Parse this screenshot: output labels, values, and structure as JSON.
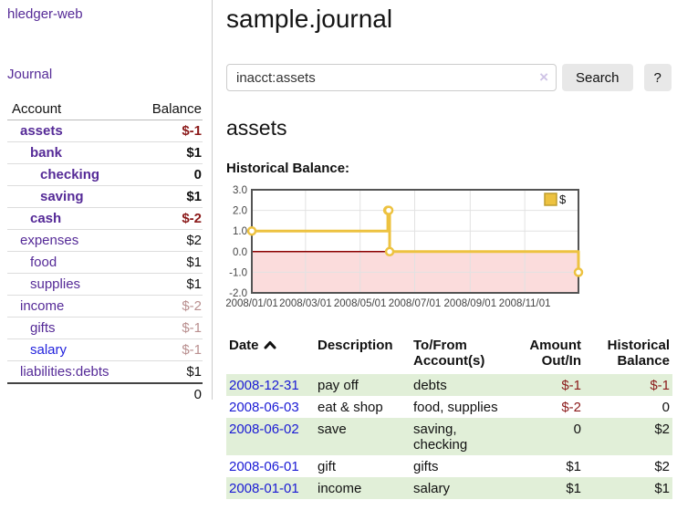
{
  "colors": {
    "accent_purple": "#552a97",
    "link_blue": "#2222dd",
    "date_link_blue": "#1a1ad4",
    "negative_red": "#8b1a1a",
    "muted_negative_red": "#b98f8f",
    "stripe_green": "#e1efd8",
    "series_yellow": "#EDC240",
    "zero_line_red": "#8b0000",
    "negative_region_pink": "#fbdcdc",
    "chart_border_gray": "#545454"
  },
  "sidebar": {
    "brand": "hledger-web",
    "journal_label": "Journal",
    "accounts": {
      "header_account": "Account",
      "header_balance": "Balance",
      "rows": [
        {
          "name": "assets",
          "balance": "$-1"
        },
        {
          "name": "bank",
          "balance": "$1"
        },
        {
          "name": "checking",
          "balance": "0"
        },
        {
          "name": "saving",
          "balance": "$1"
        },
        {
          "name": "cash",
          "balance": "$-2"
        },
        {
          "name": "expenses",
          "balance": "$2"
        },
        {
          "name": "food",
          "balance": "$1"
        },
        {
          "name": "supplies",
          "balance": "$1"
        },
        {
          "name": "income",
          "balance": "$-2"
        },
        {
          "name": "gifts",
          "balance": "$-1"
        },
        {
          "name": "salary",
          "balance": "$-1"
        },
        {
          "name": "liabilities:debts",
          "balance": "$1"
        }
      ],
      "total": "0"
    }
  },
  "main": {
    "title": "sample.journal",
    "search": {
      "value": "inacct:assets",
      "clear_icon": "×",
      "button_label": "Search",
      "help_label": "?"
    },
    "heading": "assets",
    "chart_label": "Historical Balance:"
  },
  "chart_data": {
    "type": "line",
    "title": "Historical Balance",
    "step": true,
    "series": [
      {
        "name": "$",
        "color": "#EDC240",
        "points": [
          [
            "2008-01-01",
            1
          ],
          [
            "2008-06-01",
            2
          ],
          [
            "2008-06-02",
            2
          ],
          [
            "2008-06-03",
            0
          ],
          [
            "2008-12-31",
            -1
          ]
        ]
      }
    ],
    "xrange": [
      "2008-01-01",
      "2008-12-31"
    ],
    "ylim": [
      -2,
      3
    ],
    "ytick_labels": [
      "3.0",
      "2.0",
      "1.0",
      "0.0",
      "-1.0",
      "-2.0"
    ],
    "xtick_dates": [
      "2008-01-01",
      "2008-03-01",
      "2008-05-01",
      "2008-07-01",
      "2008-09-01",
      "2008-11-01"
    ],
    "xtick_labels": [
      "2008/01/01",
      "2008/03/01",
      "2008/05/01",
      "2008/07/01",
      "2008/09/01",
      "2008/11/01"
    ],
    "grid": true,
    "legend": {
      "label": "$",
      "position": "top-right"
    },
    "negative_region": {
      "from": 0,
      "to": -2,
      "fill": "#fbdcdc",
      "line_color": "#8b0000"
    }
  },
  "register": {
    "headers": {
      "date": "Date",
      "description": "Description",
      "tofrom_line1": "To/From",
      "tofrom_line2": "Account(s)",
      "amount_line1": "Amount",
      "amount_line2": "Out/In",
      "balance_line1": "Historical",
      "balance_line2": "Balance"
    },
    "rows": [
      {
        "date": "2008-12-31",
        "description": "pay off",
        "accounts": "debts",
        "amount": "$-1",
        "balance": "$-1"
      },
      {
        "date": "2008-06-03",
        "description": "eat & shop",
        "accounts": "food, supplies",
        "amount": "$-2",
        "balance": "0"
      },
      {
        "date": "2008-06-02",
        "description": "save",
        "accounts": "saving, checking",
        "amount": "0",
        "balance": "$2"
      },
      {
        "date": "2008-06-01",
        "description": "gift",
        "accounts": "gifts",
        "amount": "$1",
        "balance": "$2"
      },
      {
        "date": "2008-01-01",
        "description": "income",
        "accounts": "salary",
        "amount": "$1",
        "balance": "$1"
      }
    ]
  }
}
